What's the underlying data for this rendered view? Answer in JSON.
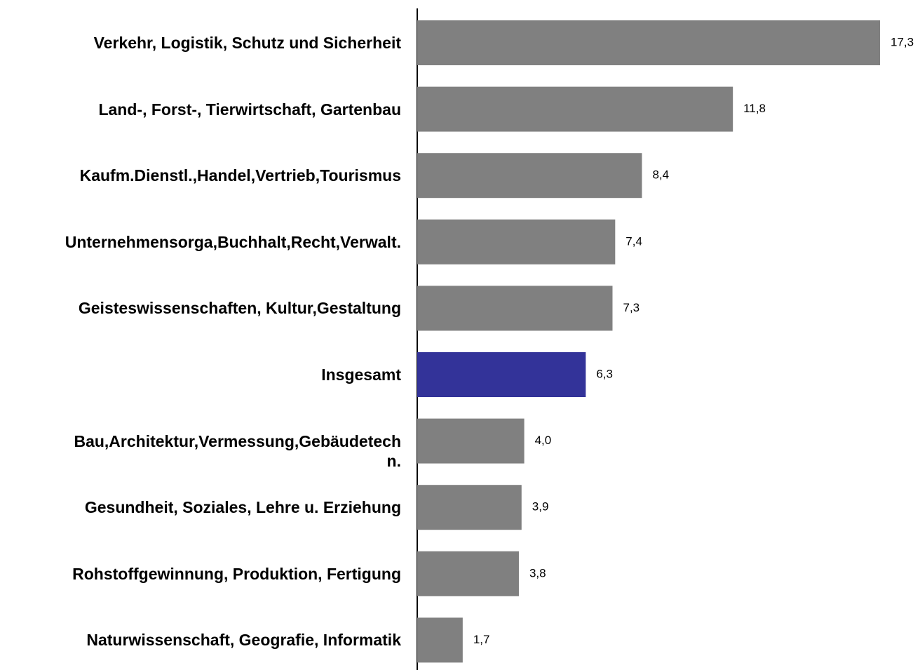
{
  "chart_data": {
    "type": "barh",
    "categories": [
      "Verkehr, Logistik, Schutz und Sicherheit",
      "Land-, Forst-, Tierwirtschaft, Gartenbau",
      "Kaufm.Dienstl.,Handel,Vertrieb,Tourismus",
      "Unternehmensorga,Buchhalt,Recht,Verwalt.",
      "Geisteswissenschaften, Kultur,Gestaltung",
      "Insgesamt",
      "Bau,Architektur,Vermessung,Gebäudetech\nn.",
      "Gesundheit, Soziales, Lehre u. Erziehung",
      "Rohstoffgewinnung, Produktion, Fertigung",
      "Naturwissenschaft, Geografie, Informatik"
    ],
    "values": [
      17.3,
      11.8,
      8.4,
      7.4,
      7.3,
      6.3,
      4.0,
      3.9,
      3.8,
      1.7
    ],
    "value_labels": [
      "17,3",
      "11,8",
      "8,4",
      "7,4",
      "7,3",
      "6,3",
      "4,0",
      "3,9",
      "3,8",
      "1,7"
    ],
    "colors": [
      "#808080",
      "#808080",
      "#808080",
      "#808080",
      "#808080",
      "#333399",
      "#808080",
      "#808080",
      "#808080",
      "#808080"
    ]
  }
}
